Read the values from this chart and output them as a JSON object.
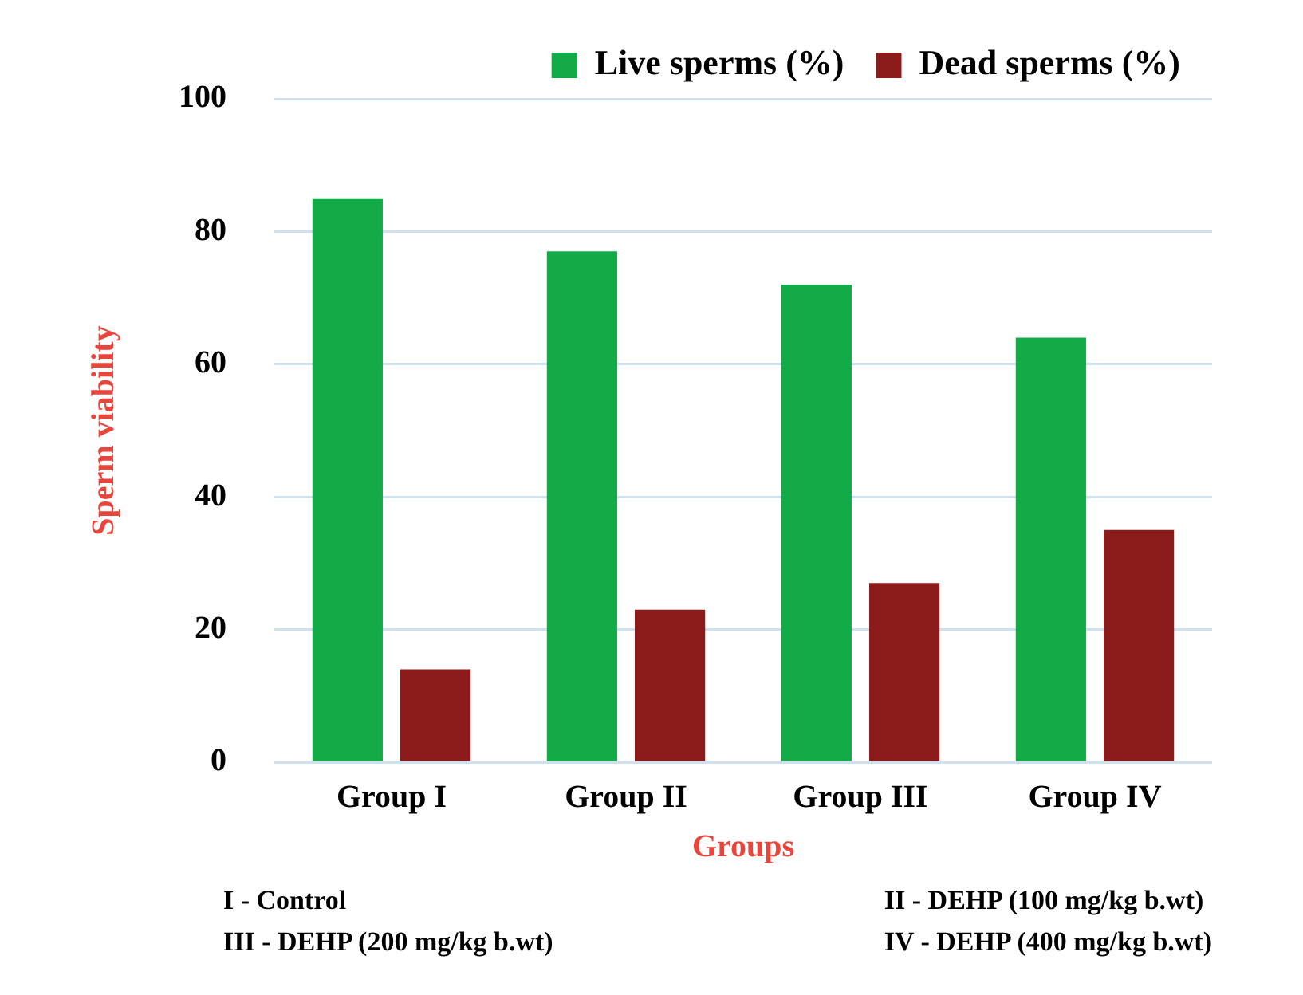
{
  "chart_data": {
    "type": "bar",
    "xlabel": "Groups",
    "ylabel": "Sperm viability",
    "categories": [
      "Group I",
      "Group II",
      "Group III",
      "Group IV"
    ],
    "series": [
      {
        "name": "Live sperms (%)",
        "color": "#12ab48",
        "values": [
          85,
          77,
          72,
          64
        ]
      },
      {
        "name": "Dead sperms (%)",
        "color": "#8b1a1a",
        "values": [
          14,
          23,
          27,
          35
        ]
      }
    ],
    "ylim": [
      0,
      100
    ],
    "yticks": [
      0,
      20,
      40,
      60,
      80,
      100
    ],
    "grid": "y",
    "legend": "top right",
    "annotations": [
      "I - Control",
      "II - DEHP (100 mg/kg b.wt)",
      "III - DEHP (200 mg/kg b.wt)",
      "IV - DEHP (400 mg/kg b.wt)"
    ]
  }
}
